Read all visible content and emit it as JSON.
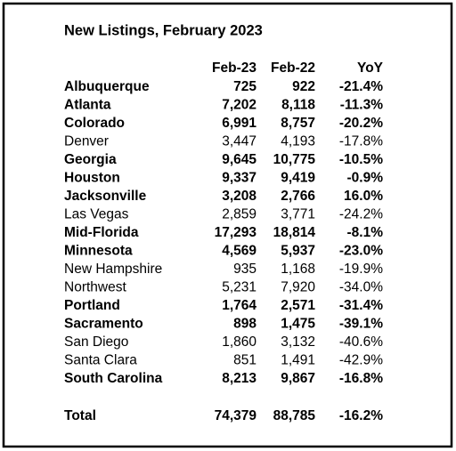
{
  "title": "New Listings, February 2023",
  "table": {
    "headers": [
      "Feb-23",
      "Feb-22",
      "YoY"
    ],
    "rows": [
      {
        "cells": [
          "Albuquerque",
          "725",
          "922",
          "-21.4%"
        ],
        "bold": true
      },
      {
        "cells": [
          "Atlanta",
          "7,202",
          "8,118",
          "-11.3%"
        ],
        "bold": true
      },
      {
        "cells": [
          "Colorado",
          "6,991",
          "8,757",
          "-20.2%"
        ],
        "bold": true
      },
      {
        "cells": [
          "Denver",
          "3,447",
          "4,193",
          "-17.8%"
        ],
        "bold": false
      },
      {
        "cells": [
          "Georgia",
          "9,645",
          "10,775",
          "-10.5%"
        ],
        "bold": true
      },
      {
        "cells": [
          "Houston",
          "9,337",
          "9,419",
          "-0.9%"
        ],
        "bold": true
      },
      {
        "cells": [
          "Jacksonville",
          "3,208",
          "2,766",
          "16.0%"
        ],
        "bold": true
      },
      {
        "cells": [
          "Las Vegas",
          "2,859",
          "3,771",
          "-24.2%"
        ],
        "bold": false
      },
      {
        "cells": [
          "Mid-Florida",
          "17,293",
          "18,814",
          "-8.1%"
        ],
        "bold": true
      },
      {
        "cells": [
          "Minnesota",
          "4,569",
          "5,937",
          "-23.0%"
        ],
        "bold": true
      },
      {
        "cells": [
          "New Hampshire",
          "935",
          "1,168",
          "-19.9%"
        ],
        "bold": false
      },
      {
        "cells": [
          "Northwest",
          "5,231",
          "7,920",
          "-34.0%"
        ],
        "bold": false
      },
      {
        "cells": [
          "Portland",
          "1,764",
          "2,571",
          "-31.4%"
        ],
        "bold": true
      },
      {
        "cells": [
          "Sacramento",
          "898",
          "1,475",
          "-39.1%"
        ],
        "bold": true
      },
      {
        "cells": [
          "San Diego",
          "1,860",
          "3,132",
          "-40.6%"
        ],
        "bold": false
      },
      {
        "cells": [
          "Santa Clara",
          "851",
          "1,491",
          "-42.9%"
        ],
        "bold": false
      },
      {
        "cells": [
          "South Carolina",
          "8,213",
          "9,867",
          "-16.8%"
        ],
        "bold": true
      }
    ],
    "total": {
      "cells": [
        "Total",
        "74,379",
        "88,785",
        "-16.2%"
      ],
      "bold": true
    }
  }
}
